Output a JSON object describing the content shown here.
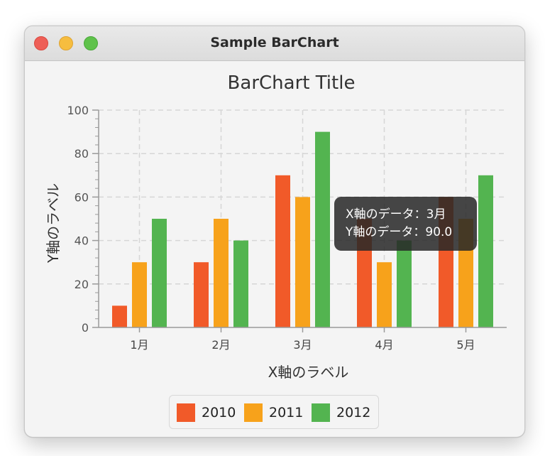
{
  "window": {
    "title": "Sample BarChart"
  },
  "tooltip": {
    "line1": "X軸のデータ：3月",
    "line2": "Y軸のデータ：90.0"
  },
  "chart_data": {
    "type": "bar",
    "title": "BarChart Title",
    "xlabel": "X軸のラベル",
    "ylabel": "Y軸のラベル",
    "categories": [
      "1月",
      "2月",
      "3月",
      "4月",
      "5月"
    ],
    "ylim": [
      0,
      100
    ],
    "yticks": [
      0,
      20,
      40,
      60,
      80,
      100
    ],
    "grid": true,
    "legend_position": "bottom",
    "series": [
      {
        "name": "2010",
        "color": "#f15a29",
        "values": [
          10,
          30,
          70,
          50,
          60
        ]
      },
      {
        "name": "2011",
        "color": "#f7a21b",
        "values": [
          30,
          50,
          60,
          30,
          50
        ]
      },
      {
        "name": "2012",
        "color": "#53b450",
        "values": [
          50,
          40,
          90,
          40,
          70
        ]
      }
    ]
  }
}
